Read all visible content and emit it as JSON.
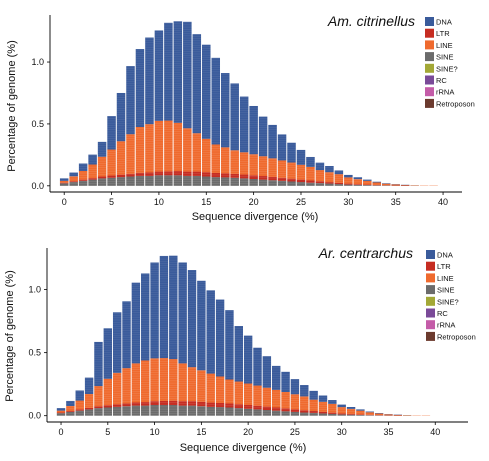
{
  "legend": {
    "categories": [
      {
        "name": "DNA",
        "color": "#3a5b9b"
      },
      {
        "name": "LTR",
        "color": "#c62d22"
      },
      {
        "name": "LINE",
        "color": "#ef6a2e"
      },
      {
        "name": "SINE",
        "color": "#6b6b6b"
      },
      {
        "name": "SINE?",
        "color": "#a3a836"
      },
      {
        "name": "RC",
        "color": "#7a4a98"
      },
      {
        "name": "rRNA",
        "color": "#c45ca8"
      },
      {
        "name": "Retroposon",
        "color": "#6b3a2e"
      }
    ]
  },
  "chart_data": [
    {
      "type": "bar",
      "stacked": true,
      "title": "Am. citrinellus",
      "xlabel": "Sequence divergence (%)",
      "ylabel": "Percentage of genome (%)",
      "xlim": [
        -1.5,
        42
      ],
      "ylim": [
        -0.05,
        1.38
      ],
      "xticks": [
        0,
        5,
        10,
        15,
        20,
        25,
        30,
        35,
        40
      ],
      "yticks": [
        0.0,
        0.5,
        1.0
      ],
      "x": [
        0,
        1,
        2,
        3,
        4,
        5,
        6,
        7,
        8,
        9,
        10,
        11,
        12,
        13,
        14,
        15,
        16,
        17,
        18,
        19,
        20,
        21,
        22,
        23,
        24,
        25,
        26,
        27,
        28,
        29,
        30,
        31,
        32,
        33,
        34,
        35,
        36,
        37,
        38,
        39,
        40
      ],
      "series": [
        {
          "name": "SINE",
          "values": [
            0.02,
            0.03,
            0.04,
            0.05,
            0.06,
            0.065,
            0.07,
            0.075,
            0.08,
            0.08,
            0.085,
            0.085,
            0.085,
            0.08,
            0.08,
            0.075,
            0.07,
            0.068,
            0.065,
            0.06,
            0.055,
            0.05,
            0.045,
            0.04,
            0.035,
            0.03,
            0.025,
            0.022,
            0.018,
            0.014,
            0.01,
            0.008,
            0.006,
            0.004,
            0.003,
            0.002,
            0.001,
            0.001,
            0.0,
            0.0,
            0.0
          ]
        },
        {
          "name": "LTR",
          "values": [
            0.005,
            0.007,
            0.01,
            0.012,
            0.015,
            0.018,
            0.02,
            0.022,
            0.025,
            0.028,
            0.03,
            0.032,
            0.034,
            0.035,
            0.035,
            0.035,
            0.034,
            0.033,
            0.032,
            0.031,
            0.03,
            0.029,
            0.027,
            0.025,
            0.023,
            0.02,
            0.018,
            0.015,
            0.012,
            0.01,
            0.008,
            0.006,
            0.004,
            0.003,
            0.002,
            0.001,
            0.001,
            0.0,
            0.0,
            0.0,
            0.0
          ]
        },
        {
          "name": "LINE",
          "values": [
            0.015,
            0.04,
            0.07,
            0.11,
            0.16,
            0.21,
            0.27,
            0.32,
            0.37,
            0.39,
            0.41,
            0.41,
            0.39,
            0.35,
            0.31,
            0.27,
            0.23,
            0.21,
            0.19,
            0.18,
            0.17,
            0.16,
            0.15,
            0.14,
            0.13,
            0.12,
            0.11,
            0.09,
            0.08,
            0.07,
            0.05,
            0.04,
            0.03,
            0.02,
            0.012,
            0.008,
            0.005,
            0.003,
            0.002,
            0.001,
            0.0
          ]
        },
        {
          "name": "DNA",
          "values": [
            0.02,
            0.03,
            0.06,
            0.08,
            0.12,
            0.27,
            0.39,
            0.55,
            0.63,
            0.7,
            0.73,
            0.79,
            0.82,
            0.86,
            0.8,
            0.76,
            0.7,
            0.6,
            0.54,
            0.45,
            0.39,
            0.32,
            0.27,
            0.21,
            0.16,
            0.12,
            0.08,
            0.06,
            0.05,
            0.03,
            0.02,
            0.015,
            0.01,
            0.006,
            0.004,
            0.002,
            0.001,
            0.0,
            0.0,
            0.0,
            0.0
          ]
        }
      ]
    },
    {
      "type": "bar",
      "stacked": true,
      "title": "Ar. centrarchus",
      "xlabel": "Sequence divergence (%)",
      "ylabel": "Percentage of genome (%)",
      "xlim": [
        -1.5,
        43.5
      ],
      "ylim": [
        -0.05,
        1.33
      ],
      "xticks": [
        0,
        5,
        10,
        15,
        20,
        25,
        30,
        35,
        40
      ],
      "yticks": [
        0.0,
        0.5,
        1.0
      ],
      "x": [
        0,
        1,
        2,
        3,
        4,
        5,
        6,
        7,
        8,
        9,
        10,
        11,
        12,
        13,
        14,
        15,
        16,
        17,
        18,
        19,
        20,
        21,
        22,
        23,
        24,
        25,
        26,
        27,
        28,
        29,
        30,
        31,
        32,
        33,
        34,
        35,
        36,
        37,
        38,
        39,
        40
      ],
      "series": [
        {
          "name": "SINE",
          "values": [
            0.02,
            0.03,
            0.04,
            0.05,
            0.06,
            0.065,
            0.07,
            0.075,
            0.08,
            0.08,
            0.085,
            0.085,
            0.085,
            0.08,
            0.08,
            0.075,
            0.07,
            0.068,
            0.065,
            0.06,
            0.055,
            0.05,
            0.045,
            0.04,
            0.035,
            0.03,
            0.025,
            0.022,
            0.018,
            0.014,
            0.01,
            0.008,
            0.006,
            0.004,
            0.003,
            0.002,
            0.001,
            0.001,
            0.0,
            0.0,
            0.0
          ]
        },
        {
          "name": "LTR",
          "values": [
            0.005,
            0.007,
            0.01,
            0.012,
            0.015,
            0.018,
            0.02,
            0.022,
            0.025,
            0.028,
            0.03,
            0.032,
            0.034,
            0.035,
            0.035,
            0.035,
            0.034,
            0.033,
            0.032,
            0.031,
            0.03,
            0.029,
            0.027,
            0.025,
            0.023,
            0.02,
            0.018,
            0.015,
            0.012,
            0.01,
            0.008,
            0.006,
            0.004,
            0.003,
            0.002,
            0.001,
            0.001,
            0.0,
            0.0,
            0.0,
            0.0
          ]
        },
        {
          "name": "LINE",
          "values": [
            0.015,
            0.04,
            0.07,
            0.11,
            0.16,
            0.21,
            0.25,
            0.28,
            0.31,
            0.33,
            0.34,
            0.34,
            0.33,
            0.3,
            0.27,
            0.25,
            0.23,
            0.21,
            0.19,
            0.18,
            0.17,
            0.16,
            0.15,
            0.14,
            0.13,
            0.12,
            0.11,
            0.09,
            0.08,
            0.07,
            0.05,
            0.04,
            0.03,
            0.02,
            0.012,
            0.008,
            0.005,
            0.003,
            0.002,
            0.001,
            0.0
          ]
        },
        {
          "name": "DNA",
          "values": [
            0.02,
            0.04,
            0.08,
            0.13,
            0.35,
            0.4,
            0.48,
            0.53,
            0.64,
            0.69,
            0.76,
            0.81,
            0.82,
            0.8,
            0.77,
            0.71,
            0.66,
            0.61,
            0.55,
            0.44,
            0.38,
            0.3,
            0.25,
            0.19,
            0.16,
            0.12,
            0.09,
            0.07,
            0.05,
            0.03,
            0.02,
            0.015,
            0.01,
            0.006,
            0.004,
            0.002,
            0.001,
            0.0,
            0.0,
            0.0,
            0.0
          ]
        }
      ]
    }
  ]
}
